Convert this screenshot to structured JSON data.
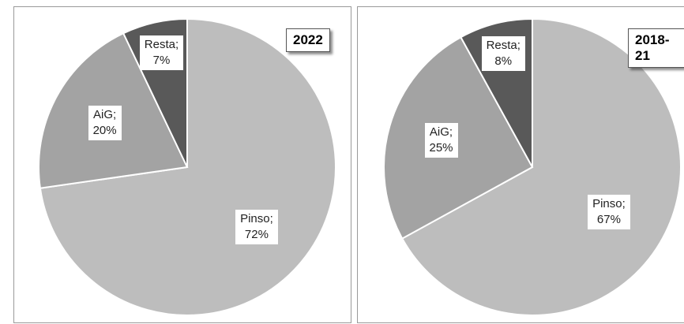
{
  "colors": {
    "Pinso": "#bdbdbd",
    "AiG": "#a3a3a3",
    "Resta": "#595959",
    "edge": "#ffffff"
  },
  "chart_data": [
    {
      "type": "pie",
      "title": "2022",
      "start_angle_deg": 0,
      "direction": "clockwise",
      "slices": [
        {
          "category": "Pinso",
          "value": 72,
          "label": "Pinso;",
          "pct_label": "72%"
        },
        {
          "category": "AiG",
          "value": 20,
          "label": "AiG;",
          "pct_label": "20%"
        },
        {
          "category": "Resta",
          "value": 7,
          "label": "Resta;",
          "pct_label": "7%"
        }
      ]
    },
    {
      "type": "pie",
      "title": "2018-21",
      "start_angle_deg": 0,
      "direction": "clockwise",
      "slices": [
        {
          "category": "Pinso",
          "value": 67,
          "label": "Pinso;",
          "pct_label": "67%"
        },
        {
          "category": "AiG",
          "value": 25,
          "label": "AiG;",
          "pct_label": "25%"
        },
        {
          "category": "Resta",
          "value": 8,
          "label": "Resta;",
          "pct_label": "8%"
        }
      ]
    }
  ]
}
